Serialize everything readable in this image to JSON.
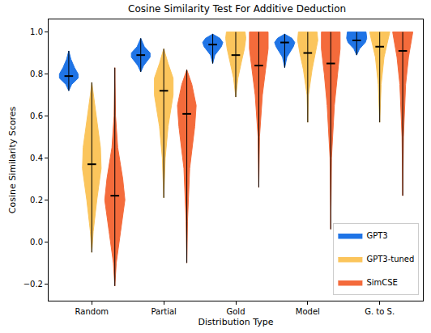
{
  "chart_data": {
    "type": "violin",
    "title": "Cosine Similarity Test For Additive Deduction",
    "x_label": "Distribution Type",
    "y_label": "Cosine Similarity Scores",
    "categories": [
      "Random",
      "Partial",
      "Gold",
      "Model",
      "G. to S."
    ],
    "ylim": [
      -0.28,
      1.06
    ],
    "yticks": [
      {
        "value": -0.2,
        "label": "−0.2"
      },
      {
        "value": 0.0,
        "label": "0.0"
      },
      {
        "value": 0.2,
        "label": "0.2"
      },
      {
        "value": 0.4,
        "label": "0.4"
      },
      {
        "value": 0.6,
        "label": "0.6"
      },
      {
        "value": 0.8,
        "label": "0.8"
      },
      {
        "value": 1.0,
        "label": "1.0"
      }
    ],
    "grid": false,
    "legend": "lower right",
    "series": [
      {
        "name": "GPT3",
        "color": "#1f74e6",
        "violins": [
          {
            "y": [
              0.72,
              0.75,
              0.78,
              0.8,
              0.83,
              0.87,
              0.91
            ],
            "widths": [
              0,
              0.04,
              0.13,
              0.13,
              0.08,
              0.03,
              0
            ],
            "median": 0.79
          },
          {
            "y": [
              0.81,
              0.84,
              0.88,
              0.9,
              0.93,
              0.97
            ],
            "widths": [
              0,
              0.04,
              0.13,
              0.13,
              0.05,
              0
            ],
            "median": 0.89
          },
          {
            "y": [
              0.85,
              0.89,
              0.93,
              0.95,
              0.97,
              0.99
            ],
            "widths": [
              0,
              0.03,
              0.12,
              0.14,
              0.1,
              0
            ],
            "median": 0.94
          },
          {
            "y": [
              0.83,
              0.88,
              0.93,
              0.95,
              0.97,
              0.99
            ],
            "widths": [
              0,
              0.03,
              0.12,
              0.14,
              0.1,
              0
            ],
            "median": 0.95
          },
          {
            "y": [
              0.89,
              0.92,
              0.95,
              0.97,
              1.0
            ],
            "widths": [
              0,
              0.04,
              0.12,
              0.14,
              0.13
            ],
            "median": 0.96
          }
        ]
      },
      {
        "name": "GPT3-tuned",
        "color": "#fbc55c",
        "violins": [
          {
            "y": [
              -0.05,
              0.05,
              0.2,
              0.35,
              0.45,
              0.6,
              0.7,
              0.76
            ],
            "widths": [
              0,
              0.02,
              0.07,
              0.13,
              0.12,
              0.06,
              0.02,
              0
            ],
            "median": 0.37
          },
          {
            "y": [
              0.21,
              0.4,
              0.55,
              0.7,
              0.78,
              0.85,
              0.92
            ],
            "widths": [
              0,
              0.02,
              0.06,
              0.13,
              0.13,
              0.06,
              0
            ],
            "median": 0.72
          },
          {
            "y": [
              0.69,
              0.78,
              0.86,
              0.92,
              0.97,
              1.0
            ],
            "widths": [
              0,
              0.03,
              0.08,
              0.12,
              0.14,
              0.13
            ],
            "median": 0.89
          },
          {
            "y": [
              0.57,
              0.7,
              0.82,
              0.9,
              0.96,
              1.0
            ],
            "widths": [
              0,
              0.01,
              0.06,
              0.11,
              0.14,
              0.13
            ],
            "median": 0.9
          },
          {
            "y": [
              0.57,
              0.75,
              0.88,
              0.95,
              1.0
            ],
            "widths": [
              0,
              0.02,
              0.06,
              0.11,
              0.14
            ],
            "median": 0.93
          }
        ]
      },
      {
        "name": "SimCSE",
        "color": "#f46b3b",
        "violins": [
          {
            "y": [
              -0.21,
              -0.1,
              0.05,
              0.2,
              0.3,
              0.45,
              0.6,
              0.83
            ],
            "widths": [
              0,
              0.02,
              0.08,
              0.14,
              0.11,
              0.04,
              0.01,
              0
            ],
            "median": 0.22
          },
          {
            "y": [
              -0.1,
              0.1,
              0.35,
              0.55,
              0.65,
              0.75,
              0.82
            ],
            "widths": [
              0,
              0.01,
              0.04,
              0.11,
              0.13,
              0.07,
              0
            ],
            "median": 0.61
          },
          {
            "y": [
              0.26,
              0.5,
              0.7,
              0.82,
              0.92,
              1.0
            ],
            "widths": [
              0,
              0.01,
              0.05,
              0.09,
              0.13,
              0.13
            ],
            "median": 0.84
          },
          {
            "y": [
              0.06,
              0.4,
              0.65,
              0.8,
              0.92,
              1.0
            ],
            "widths": [
              0,
              0.01,
              0.05,
              0.09,
              0.13,
              0.13
            ],
            "median": 0.85
          },
          {
            "y": [
              0.22,
              0.5,
              0.75,
              0.88,
              1.0
            ],
            "widths": [
              0,
              0.01,
              0.04,
              0.08,
              0.14
            ],
            "median": 0.91
          }
        ]
      }
    ]
  }
}
